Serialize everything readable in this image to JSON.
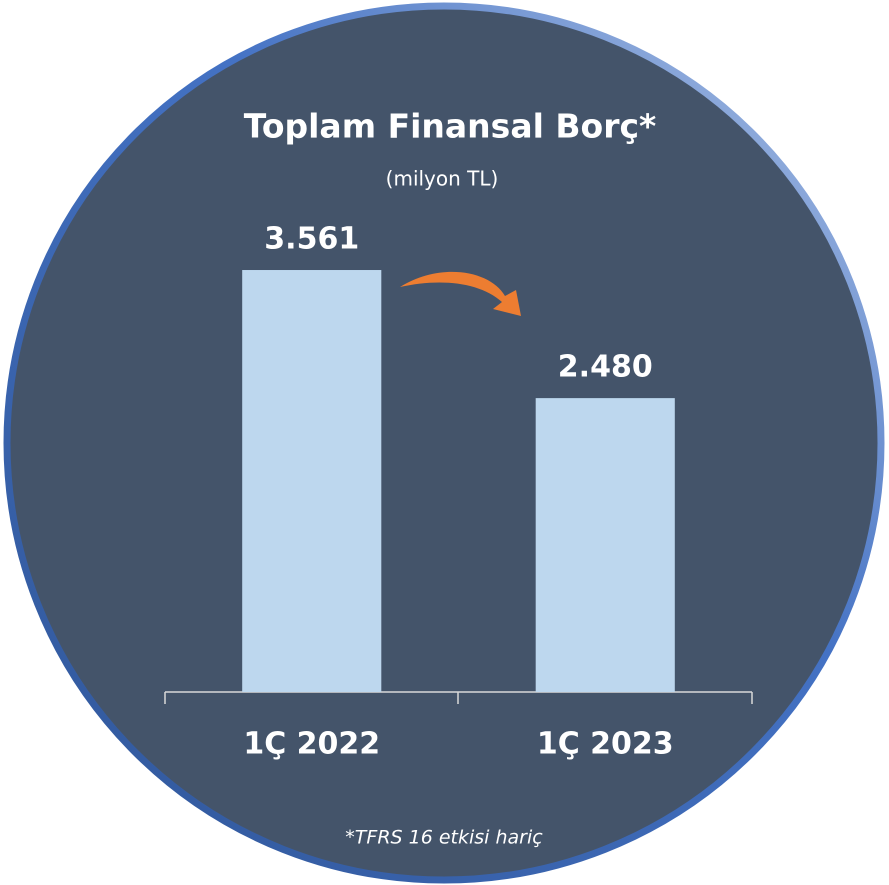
{
  "chart_data": {
    "type": "bar",
    "title": "Toplam Finansal Borç*",
    "subtitle": "(milyon TL)",
    "footnote": "*TFRS 16 etkisi hariç",
    "categories": [
      "1Ç 2022",
      "1Ç 2023"
    ],
    "values": [
      3561,
      2480
    ],
    "value_labels": [
      "3.561",
      "2.480"
    ],
    "color": "#bdd7ee",
    "ylim": [
      0,
      4000
    ]
  }
}
